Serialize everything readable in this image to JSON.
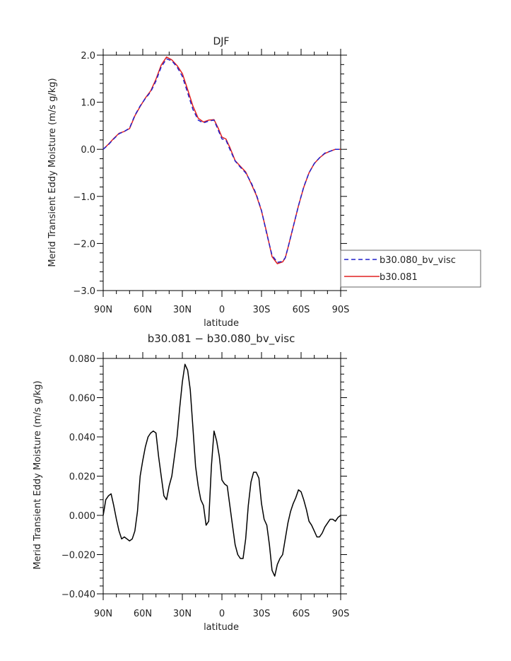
{
  "chart_data": [
    {
      "type": "line",
      "title": "DJF",
      "xlabel": "latitude",
      "ylabel": "Merid Transient Eddy Moisture (m/s g/kg)",
      "xlim": [
        90,
        -90
      ],
      "ylim": [
        -3.0,
        2.0
      ],
      "x_ticks": [
        90,
        60,
        30,
        0,
        -30,
        -60,
        -90
      ],
      "x_tick_labels": [
        "90N",
        "60N",
        "30N",
        "0",
        "30S",
        "60S",
        "90S"
      ],
      "y_ticks": [
        2.0,
        1.0,
        0.0,
        -1.0,
        -2.0,
        -3.0
      ],
      "y_tick_labels": [
        "2.0",
        "1.0",
        "0.0",
        "−1.0",
        "−2.0",
        "−3.0"
      ],
      "legend_position": "right",
      "x": [
        90,
        86,
        82,
        78,
        74,
        70,
        66,
        62,
        58,
        54,
        50,
        46,
        42,
        38,
        34,
        30,
        26,
        22,
        18,
        14,
        10,
        6,
        3,
        0,
        -3,
        -6,
        -10,
        -14,
        -18,
        -22,
        -26,
        -30,
        -34,
        -38,
        -42,
        -46,
        -48,
        -50,
        -54,
        -58,
        -62,
        -66,
        -70,
        -74,
        -78,
        -82,
        -86,
        -90
      ],
      "series": [
        {
          "name": "b30.080_bv_visc",
          "color": "#2020cc",
          "dash": "dashed",
          "values": [
            0.0,
            0.1,
            0.22,
            0.33,
            0.38,
            0.45,
            0.72,
            0.92,
            1.08,
            1.22,
            1.45,
            1.75,
            1.92,
            1.88,
            1.75,
            1.55,
            1.2,
            0.85,
            0.62,
            0.56,
            0.6,
            0.62,
            0.42,
            0.22,
            0.2,
            0.0,
            -0.25,
            -0.38,
            -0.5,
            -0.7,
            -0.95,
            -1.3,
            -1.8,
            -2.25,
            -2.4,
            -2.38,
            -2.3,
            -2.1,
            -1.65,
            -1.2,
            -0.8,
            -0.5,
            -0.3,
            -0.18,
            -0.08,
            -0.04,
            0.0,
            0.0
          ]
        },
        {
          "name": "b30.081",
          "color": "#e02020",
          "dash": "solid",
          "values": [
            0.0,
            0.11,
            0.23,
            0.34,
            0.38,
            0.44,
            0.71,
            0.91,
            1.09,
            1.24,
            1.49,
            1.79,
            1.96,
            1.9,
            1.78,
            1.61,
            1.27,
            0.92,
            0.66,
            0.58,
            0.62,
            0.63,
            0.46,
            0.26,
            0.22,
            0.04,
            -0.24,
            -0.36,
            -0.48,
            -0.72,
            -0.97,
            -1.31,
            -1.78,
            -2.28,
            -2.43,
            -2.39,
            -2.31,
            -2.1,
            -1.65,
            -1.2,
            -0.81,
            -0.5,
            -0.3,
            -0.18,
            -0.09,
            -0.04,
            0.0,
            0.0
          ]
        }
      ]
    },
    {
      "type": "line",
      "title": "b30.081 − b30.080_bv_visc",
      "xlabel": "latitude",
      "ylabel": "Merid Transient Eddy Moisture (m/s g/kg)",
      "xlim": [
        90,
        -90
      ],
      "ylim": [
        -0.04,
        0.08
      ],
      "x_ticks": [
        90,
        60,
        30,
        0,
        -30,
        -60,
        -90
      ],
      "x_tick_labels": [
        "90N",
        "60N",
        "30N",
        "0",
        "30S",
        "60S",
        "90S"
      ],
      "y_ticks": [
        0.08,
        0.06,
        0.04,
        0.02,
        0.0,
        -0.02,
        -0.04
      ],
      "y_tick_labels": [
        "0.080",
        "0.060",
        "0.040",
        "0.020",
        "0.000",
        "−0.020",
        "−0.040"
      ],
      "x": [
        90,
        88,
        86,
        84,
        82,
        80,
        78,
        76,
        74,
        72,
        70,
        68,
        66,
        64,
        62,
        60,
        58,
        56,
        54,
        52,
        50,
        48,
        46,
        44,
        42,
        40,
        38,
        36,
        34,
        32,
        30,
        28,
        26,
        24,
        22,
        20,
        18,
        16,
        14,
        12,
        10,
        8,
        6,
        4,
        2,
        0,
        -2,
        -4,
        -6,
        -8,
        -10,
        -12,
        -14,
        -16,
        -18,
        -20,
        -22,
        -24,
        -26,
        -28,
        -30,
        -32,
        -34,
        -36,
        -38,
        -40,
        -42,
        -44,
        -46,
        -48,
        -50,
        -52,
        -54,
        -56,
        -58,
        -60,
        -62,
        -64,
        -66,
        -68,
        -70,
        -72,
        -74,
        -76,
        -78,
        -80,
        -82,
        -84,
        -86,
        -88,
        -90
      ],
      "series": [
        {
          "name": "",
          "color": "#000000",
          "dash": "solid",
          "values": [
            0.0,
            0.008,
            0.01,
            0.011,
            0.005,
            -0.002,
            -0.008,
            -0.012,
            -0.011,
            -0.012,
            -0.013,
            -0.012,
            -0.008,
            0.002,
            0.02,
            0.028,
            0.035,
            0.04,
            0.042,
            0.043,
            0.042,
            0.03,
            0.02,
            0.01,
            0.008,
            0.015,
            0.02,
            0.03,
            0.04,
            0.055,
            0.068,
            0.077,
            0.074,
            0.064,
            0.045,
            0.025,
            0.015,
            0.008,
            0.005,
            -0.005,
            -0.003,
            0.025,
            0.043,
            0.038,
            0.03,
            0.018,
            0.016,
            0.015,
            0.005,
            -0.005,
            -0.015,
            -0.02,
            -0.022,
            -0.022,
            -0.012,
            0.005,
            0.017,
            0.022,
            0.022,
            0.019,
            0.006,
            -0.002,
            -0.005,
            -0.015,
            -0.028,
            -0.031,
            -0.025,
            -0.022,
            -0.02,
            -0.012,
            -0.004,
            0.002,
            0.006,
            0.009,
            0.013,
            0.012,
            0.008,
            0.003,
            -0.003,
            -0.005,
            -0.008,
            -0.011,
            -0.011,
            -0.009,
            -0.006,
            -0.004,
            -0.002,
            -0.002,
            -0.003,
            -0.001,
            0.0
          ]
        }
      ]
    }
  ]
}
